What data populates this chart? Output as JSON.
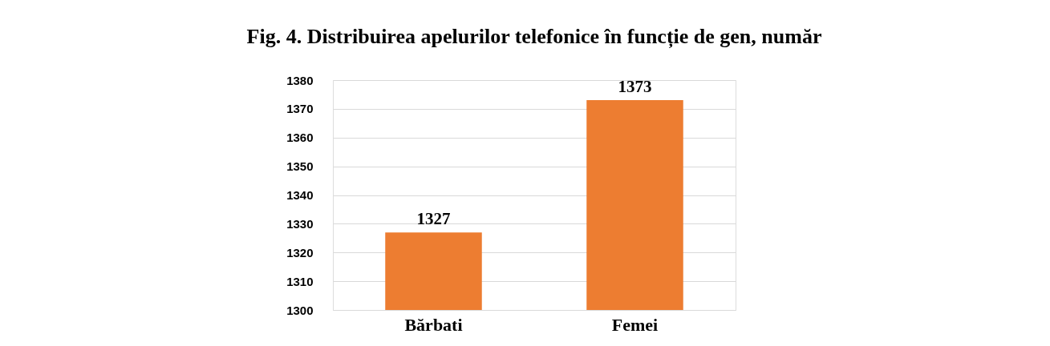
{
  "chart_data": {
    "type": "bar",
    "title": "Fig. 4. Distribuirea apelurilor telefonice în funcție de gen, număr",
    "categories": [
      "Bărbati",
      "Femei"
    ],
    "values": [
      1327,
      1373
    ],
    "color": "#ed7d31",
    "ylim": [
      1300,
      1380
    ],
    "yticks": [
      1300,
      1310,
      1320,
      1330,
      1340,
      1350,
      1360,
      1370,
      1380
    ],
    "grid": "y",
    "data_labels": true
  }
}
